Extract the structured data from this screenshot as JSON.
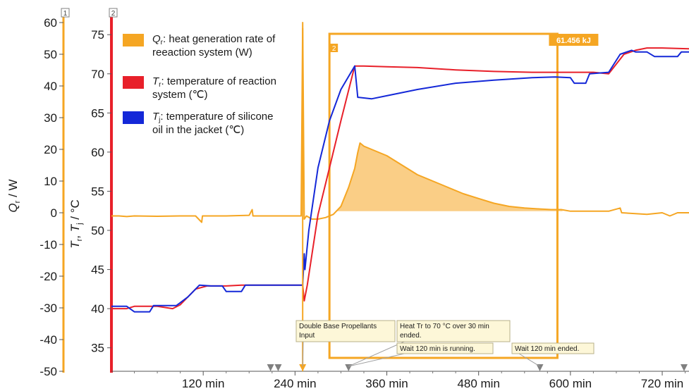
{
  "chart_data": {
    "type": "line",
    "xlabel": "",
    "x_unit": "min",
    "xlim": [
      0,
      755
    ],
    "x_ticks": [
      {
        "value": 120,
        "label": "120 min"
      },
      {
        "value": 240,
        "label": "240 min"
      },
      {
        "value": 360,
        "label": "360 min"
      },
      {
        "value": 480,
        "label": "480 min"
      },
      {
        "value": 600,
        "label": "600 min"
      },
      {
        "value": 720,
        "label": "720 min"
      }
    ],
    "axes": [
      {
        "id": "1",
        "badge": "1",
        "label_main": "Q",
        "label_sub": "r",
        "label_rest": " / W",
        "color": "#f5a623",
        "ylim": [
          -50,
          60
        ],
        "ticks": [
          "60",
          "50",
          "40",
          "30",
          "20",
          "10",
          "0",
          "-10",
          "-20",
          "-30",
          "-40",
          "-50"
        ]
      },
      {
        "id": "2",
        "badge": "2",
        "label_t1": "T",
        "label_t1_sub": "r",
        "label_sep": ", ",
        "label_t2": "T",
        "label_t2_sub": "j",
        "label_rest": " / °C",
        "color": "#e8202a",
        "ylim": [
          32,
          77
        ],
        "ticks": [
          "75",
          "70",
          "65",
          "60",
          "55",
          "50",
          "45",
          "40",
          "35"
        ]
      }
    ],
    "series": [
      {
        "key": "qr",
        "axis": "1",
        "color": "#f5a623",
        "fill_color": "#f9c671",
        "legend_main": "Q",
        "legend_sub": "r",
        "legend_line1": ": heat generation rate of",
        "legend_line2": "reeaction system (W)",
        "points": [
          [
            0,
            -1
          ],
          [
            10,
            -1
          ],
          [
            20,
            -1.2
          ],
          [
            30,
            -1
          ],
          [
            60,
            -1.1
          ],
          [
            90,
            -1
          ],
          [
            110,
            -1
          ],
          [
            118,
            -3
          ],
          [
            119,
            -1
          ],
          [
            150,
            -1
          ],
          [
            180,
            -0.8
          ],
          [
            184,
            1
          ],
          [
            185,
            -1
          ],
          [
            210,
            -1
          ],
          [
            240,
            -1
          ],
          [
            248,
            -1
          ],
          [
            250,
            60
          ],
          [
            252,
            -2
          ],
          [
            255,
            -1
          ],
          [
            262,
            -2
          ],
          [
            270,
            -2
          ],
          [
            280,
            -1.5
          ],
          [
            290,
            -0.5
          ],
          [
            300,
            2
          ],
          [
            310,
            8
          ],
          [
            318,
            14
          ],
          [
            322,
            19
          ],
          [
            325,
            22
          ],
          [
            330,
            21
          ],
          [
            340,
            20
          ],
          [
            360,
            18
          ],
          [
            380,
            15
          ],
          [
            400,
            12
          ],
          [
            420,
            10
          ],
          [
            440,
            8
          ],
          [
            460,
            6
          ],
          [
            480,
            4.5
          ],
          [
            500,
            3
          ],
          [
            520,
            2
          ],
          [
            540,
            1.5
          ],
          [
            560,
            1.2
          ],
          [
            575,
            1
          ],
          [
            588,
            1
          ],
          [
            600,
            0.5
          ],
          [
            620,
            0.5
          ],
          [
            650,
            0.5
          ],
          [
            665,
            1.5
          ],
          [
            667,
            0
          ],
          [
            700,
            -0.5
          ],
          [
            720,
            0
          ],
          [
            730,
            -1
          ],
          [
            740,
            0
          ],
          [
            755,
            0
          ]
        ],
        "fill_range": [
          295,
          590
        ],
        "fill_base": 0.5
      },
      {
        "key": "tr",
        "axis": "2",
        "color": "#e8202a",
        "legend_main": "T",
        "legend_sub": "r",
        "legend_line1": ": temperature of reaction",
        "legend_line2": "system (℃)",
        "points": [
          [
            0,
            40
          ],
          [
            20,
            40
          ],
          [
            30,
            40.3
          ],
          [
            60,
            40.3
          ],
          [
            80,
            40
          ],
          [
            90,
            40.5
          ],
          [
            110,
            42.5
          ],
          [
            125,
            42.9
          ],
          [
            150,
            42.9
          ],
          [
            170,
            43
          ],
          [
            200,
            43
          ],
          [
            250,
            43
          ],
          [
            252,
            41
          ],
          [
            256,
            43
          ],
          [
            270,
            52
          ],
          [
            285,
            58
          ],
          [
            300,
            64
          ],
          [
            318,
            71
          ],
          [
            330,
            71
          ],
          [
            360,
            70.9
          ],
          [
            400,
            70.8
          ],
          [
            450,
            70.5
          ],
          [
            500,
            70.3
          ],
          [
            550,
            70.2
          ],
          [
            590,
            70.2
          ],
          [
            600,
            70.2
          ],
          [
            630,
            70.2
          ],
          [
            650,
            70
          ],
          [
            670,
            72.5
          ],
          [
            685,
            73
          ],
          [
            700,
            73.3
          ],
          [
            720,
            73.3
          ],
          [
            755,
            73.2
          ]
        ]
      },
      {
        "key": "tj",
        "axis": "2",
        "color": "#1428d8",
        "legend_main": "T",
        "legend_sub": "j",
        "legend_line1": ": temperature of silicone",
        "legend_line2": "oil in the jacket (℃)",
        "points": [
          [
            0,
            40.3
          ],
          [
            20,
            40.3
          ],
          [
            30,
            39.6
          ],
          [
            50,
            39.6
          ],
          [
            55,
            40.4
          ],
          [
            85,
            40.4
          ],
          [
            100,
            41.5
          ],
          [
            115,
            43
          ],
          [
            130,
            42.9
          ],
          [
            145,
            42.9
          ],
          [
            150,
            42.2
          ],
          [
            170,
            42.2
          ],
          [
            175,
            43
          ],
          [
            200,
            43
          ],
          [
            250,
            43
          ],
          [
            252,
            47
          ],
          [
            253,
            45
          ],
          [
            258,
            50
          ],
          [
            270,
            58
          ],
          [
            285,
            64
          ],
          [
            300,
            68
          ],
          [
            318,
            71
          ],
          [
            322,
            67
          ],
          [
            340,
            66.8
          ],
          [
            360,
            67.2
          ],
          [
            400,
            68
          ],
          [
            450,
            68.8
          ],
          [
            500,
            69.2
          ],
          [
            550,
            69.5
          ],
          [
            580,
            69.6
          ],
          [
            600,
            69.5
          ],
          [
            605,
            68.8
          ],
          [
            620,
            68.8
          ],
          [
            625,
            70
          ],
          [
            650,
            70.2
          ],
          [
            665,
            72.5
          ],
          [
            680,
            73
          ],
          [
            685,
            72.8
          ],
          [
            700,
            72.8
          ],
          [
            710,
            72.2
          ],
          [
            740,
            72.2
          ],
          [
            745,
            72.8
          ],
          [
            755,
            72.8
          ]
        ]
      }
    ],
    "highlight": {
      "badge": "2",
      "value_label": "61.456 kJ",
      "x_start": 285,
      "x_end": 583,
      "color": "#f5a623"
    },
    "annotations": [
      {
        "text_lines": [
          "Double Base Propellants",
          "Input"
        ],
        "anchor_x": 250
      },
      {
        "text_lines": [
          "Heat Tr to 70 °C over 30 min",
          "ended."
        ],
        "anchor_x": 310
      },
      {
        "text_lines": [
          "Wait 120 min is running."
        ],
        "anchor_x": 310
      },
      {
        "text_lines": [
          "Wait 120 min ended."
        ],
        "anchor_x": 560
      }
    ],
    "event_markers": [
      208,
      218,
      250,
      310,
      560,
      755
    ]
  }
}
